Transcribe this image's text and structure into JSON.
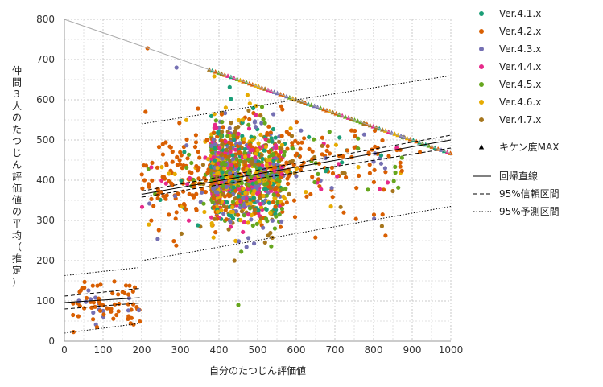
{
  "chart_data": {
    "type": "scatter",
    "xlabel": "自分のたつじん評価値",
    "ylabel": "仲間3人のたつじん評価値の平均（推定）",
    "xlim": [
      0,
      1000
    ],
    "ylim": [
      0,
      800
    ],
    "xticks": [
      0,
      100,
      200,
      300,
      400,
      500,
      600,
      700,
      800,
      900,
      1000
    ],
    "yticks": [
      0,
      100,
      200,
      300,
      400,
      500,
      600,
      700,
      800
    ],
    "grid": true,
    "legend_position": "right",
    "series": [
      {
        "name": "Ver.4.1.x",
        "color": "#1b9e77",
        "marker": "circle"
      },
      {
        "name": "Ver.4.2.x",
        "color": "#d95f02",
        "marker": "circle"
      },
      {
        "name": "Ver.4.3.x",
        "color": "#7570b3",
        "marker": "circle"
      },
      {
        "name": "Ver.4.4.x",
        "color": "#e7298a",
        "marker": "circle"
      },
      {
        "name": "Ver.4.5.x",
        "color": "#66a61e",
        "marker": "circle"
      },
      {
        "name": "Ver.4.6.x",
        "color": "#e6ab02",
        "marker": "circle"
      },
      {
        "name": "Ver.4.7.x",
        "color": "#a6761d",
        "marker": "circle"
      }
    ],
    "max_series": {
      "name": "キケン度MAX",
      "color": "#a6761d",
      "marker": "triangle",
      "line_from": [
        0,
        800
      ],
      "line_to": [
        1000,
        466.7
      ]
    },
    "line_legend": [
      {
        "name": "回帰直線",
        "style": "solid"
      },
      {
        "name": "95%信頼区間",
        "style": "dashed"
      },
      {
        "name": "95%予測区間",
        "style": "dotted"
      }
    ],
    "regression_segments": [
      {
        "x_range": [
          0,
          195
        ],
        "fit": [
          96,
          108
        ],
        "conf_lower": [
          80,
          95
        ],
        "conf_upper": [
          112,
          131
        ],
        "pred_lower": [
          20,
          44
        ],
        "pred_upper": [
          163,
          183
        ]
      },
      {
        "x_range": [
          200,
          1000
        ],
        "fit": [
          365,
          500
        ],
        "conf_lower": [
          358,
          480
        ],
        "conf_upper": [
          373,
          512
        ],
        "pred_lower": [
          200,
          335
        ],
        "pred_upper": [
          540,
          660
        ]
      }
    ]
  }
}
